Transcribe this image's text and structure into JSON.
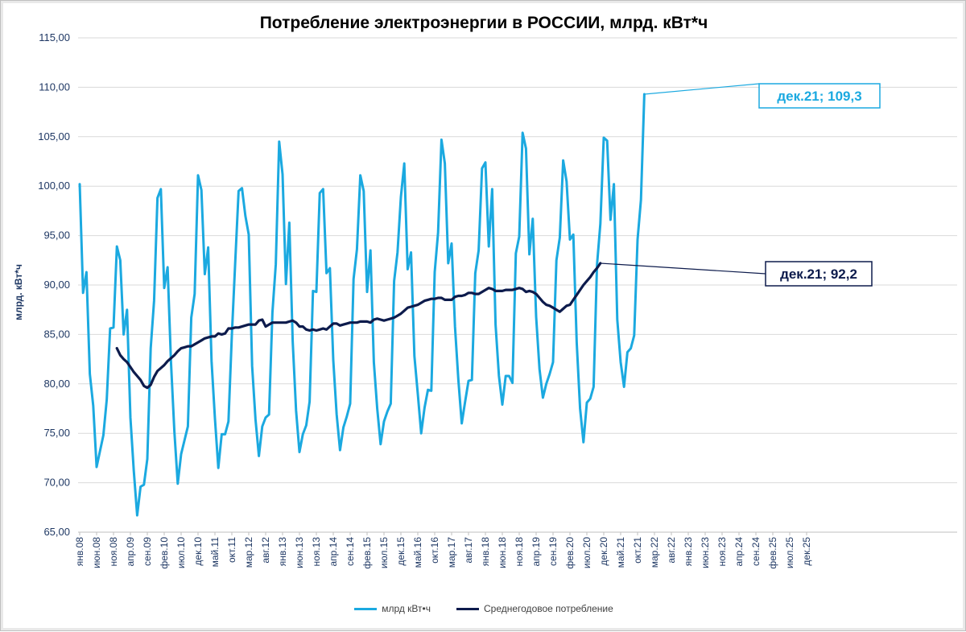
{
  "chart_data": {
    "type": "line",
    "title": "Потребление электроэнергии в РОССИИ, млрд. кВт*ч",
    "ylabel": "млрд. кВт*ч",
    "xlabel": "",
    "ylim": [
      65,
      115
    ],
    "y_ticks": [
      "65,00",
      "70,00",
      "75,00",
      "80,00",
      "85,00",
      "90,00",
      "95,00",
      "100,00",
      "105,00",
      "110,00",
      "115,00"
    ],
    "x_tick_labels": [
      "янв.08",
      "июн.08",
      "ноя.08",
      "апр.09",
      "сен.09",
      "фев.10",
      "июл.10",
      "дек.10",
      "май.11",
      "окт.11",
      "мар.12",
      "авг.12",
      "янв.13",
      "июн.13",
      "ноя.13",
      "апр.14",
      "сен.14",
      "фев.15",
      "июл.15",
      "дек.15",
      "май.16",
      "окт.16",
      "мар.17",
      "авг.17",
      "янв.18",
      "июн.18",
      "ноя.18",
      "апр.19",
      "сен.19",
      "фев.20",
      "июл.20",
      "дек.20",
      "май.21",
      "окт.21",
      "мар.22",
      "авг.22",
      "янв.23",
      "июн.23",
      "ноя.23",
      "апр.24",
      "сен.24",
      "фев.25",
      "июл.25",
      "дек.25"
    ],
    "x_start": "2008-01",
    "grid": true,
    "legend_position": "bottom",
    "series": [
      {
        "name": "млрд кВт•ч",
        "color": "#1ba9e0",
        "values": [
          100.2,
          89.2,
          91.3,
          81.0,
          77.8,
          71.6,
          73.2,
          74.8,
          78.4,
          85.6,
          85.7,
          93.9,
          92.5,
          85.0,
          87.5,
          76.6,
          71.2,
          66.7,
          69.6,
          69.8,
          72.4,
          83.6,
          88.4,
          98.8,
          99.7,
          89.7,
          91.8,
          82.2,
          75.2,
          69.9,
          72.9,
          74.3,
          75.7,
          86.7,
          89.1,
          101.1,
          99.6,
          91.1,
          93.8,
          82.3,
          76.5,
          71.5,
          74.9,
          74.9,
          76.2,
          84.9,
          92.3,
          99.5,
          99.8,
          97.0,
          95.1,
          81.8,
          76.4,
          72.7,
          75.7,
          76.6,
          76.9,
          87.2,
          92.1,
          104.5,
          101.2,
          90.1,
          96.3,
          84.3,
          77.3,
          73.1,
          74.9,
          75.8,
          78.2,
          89.4,
          89.3,
          99.3,
          99.7,
          91.2,
          91.7,
          82.4,
          76.9,
          73.3,
          75.6,
          76.7,
          78.0,
          90.6,
          93.6,
          101.1,
          99.5,
          89.3,
          93.5,
          82.2,
          77.5,
          73.9,
          76.2,
          77.2,
          78.0,
          90.4,
          93.3,
          98.9,
          102.3,
          91.6,
          93.3,
          82.8,
          79.0,
          75.0,
          77.6,
          79.4,
          79.3,
          91.3,
          95.3,
          104.7,
          102.3,
          92.2,
          94.2,
          85.8,
          80.4,
          76.0,
          78.2,
          80.3,
          80.4,
          91.2,
          93.5,
          101.8,
          102.4,
          93.9,
          99.7,
          86.0,
          80.8,
          77.9,
          80.8,
          80.8,
          80.1,
          93.2,
          94.9,
          105.4,
          103.8,
          93.1,
          96.7,
          86.8,
          81.5,
          78.6,
          80.0,
          81.0,
          82.2,
          92.5,
          94.8,
          102.6,
          100.5,
          94.6,
          95.1,
          84.2,
          77.5,
          74.1,
          78.1,
          78.5,
          79.7,
          92.0,
          96.2,
          104.9,
          104.6,
          96.6,
          100.2,
          86.5,
          82.2,
          79.7,
          83.2,
          83.6,
          84.9,
          94.6,
          98.6,
          109.3
        ],
        "annotation": "дек.21; 109,3"
      },
      {
        "name": "Среднегодовое потребление",
        "color": "#0d1b4c",
        "start_index": 11,
        "values": [
          83.6,
          82.9,
          82.5,
          82.2,
          81.7,
          81.2,
          80.8,
          80.4,
          79.8,
          79.6,
          79.9,
          80.7,
          81.3,
          81.6,
          81.9,
          82.3,
          82.6,
          82.9,
          83.3,
          83.6,
          83.7,
          83.8,
          83.8,
          84.0,
          84.2,
          84.4,
          84.6,
          84.7,
          84.8,
          84.8,
          85.1,
          85.0,
          85.1,
          85.6,
          85.6,
          85.7,
          85.7,
          85.8,
          85.9,
          86.0,
          86.0,
          86.0,
          86.4,
          86.5,
          85.8,
          86.0,
          86.2,
          86.2,
          86.2,
          86.2,
          86.2,
          86.3,
          86.4,
          86.2,
          85.8,
          85.8,
          85.5,
          85.4,
          85.5,
          85.4,
          85.5,
          85.6,
          85.5,
          85.8,
          86.1,
          86.1,
          85.9,
          86.0,
          86.1,
          86.2,
          86.2,
          86.2,
          86.3,
          86.3,
          86.3,
          86.2,
          86.5,
          86.6,
          86.5,
          86.4,
          86.5,
          86.6,
          86.7,
          86.9,
          87.1,
          87.4,
          87.7,
          87.8,
          87.9,
          88.0,
          88.2,
          88.4,
          88.5,
          88.6,
          88.6,
          88.7,
          88.7,
          88.5,
          88.5,
          88.5,
          88.8,
          88.9,
          88.9,
          89.0,
          89.2,
          89.2,
          89.1,
          89.1,
          89.3,
          89.5,
          89.7,
          89.6,
          89.4,
          89.4,
          89.4,
          89.5,
          89.5,
          89.5,
          89.6,
          89.7,
          89.6,
          89.3,
          89.4,
          89.3,
          89.1,
          88.7,
          88.3,
          88.0,
          87.9,
          87.7,
          87.5,
          87.3,
          87.6,
          87.9,
          88.0,
          88.5,
          89.0,
          89.5,
          90.0,
          90.4,
          90.8,
          91.3,
          91.7,
          92.2
        ],
        "annotation": "дек.21; 92,2"
      }
    ]
  }
}
